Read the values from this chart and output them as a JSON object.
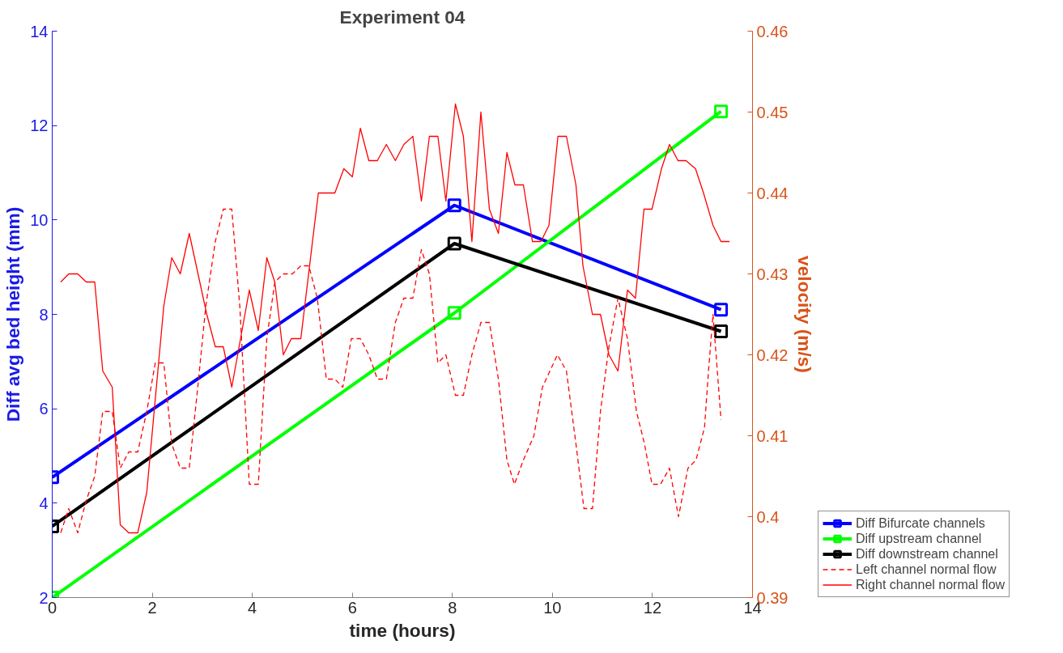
{
  "chart_data": {
    "type": "line",
    "title": "Experiment 04",
    "xlabel": "time (hours)",
    "ylabel": "Diff avg bed height (mm)",
    "y2label": "velocity (m/s)",
    "xlim": [
      0,
      14
    ],
    "xticks": [
      0,
      2,
      4,
      6,
      8,
      10,
      12,
      14
    ],
    "ylim": [
      2,
      14
    ],
    "yticks": [
      2,
      4,
      6,
      8,
      10,
      12,
      14
    ],
    "y2lim": [
      0.39,
      0.46
    ],
    "y2ticks": [
      0.39,
      0.4,
      0.41,
      0.42,
      0.43,
      0.44,
      0.45,
      0.46
    ],
    "grid": false,
    "legend": "bottom right",
    "series": [
      {
        "name": "Diff Bifurcate channels",
        "color": "#0000ff",
        "marker": "square",
        "line_style": "solid",
        "x": [
          0,
          8.04,
          13.37
        ],
        "values": [
          4.55,
          10.31,
          8.1
        ]
      },
      {
        "name": "Diff upstream channel",
        "color": "#00ff00",
        "marker": "square",
        "line_style": "solid",
        "x": [
          0,
          8.04,
          13.37
        ],
        "values": [
          2.0,
          8.03,
          12.3
        ]
      },
      {
        "name": "Diff downstream channel",
        "color": "#000000",
        "marker": "square",
        "line_style": "solid",
        "x": [
          0,
          8.04,
          13.37
        ],
        "values": [
          3.51,
          9.5,
          7.64
        ]
      },
      {
        "name": "Left channel normal flow",
        "color": "#ff0000",
        "marker": "none",
        "line_style": "dashed",
        "axis": "y2",
        "x": [
          0.17,
          0.33,
          0.51,
          0.68,
          0.85,
          1.01,
          1.2,
          1.36,
          1.53,
          1.71,
          1.89,
          2.06,
          2.23,
          2.39,
          2.56,
          2.74,
          2.91,
          3.07,
          3.26,
          3.42,
          3.59,
          3.75,
          3.94,
          4.12,
          4.29,
          4.45,
          4.62,
          4.8,
          4.97,
          5.13,
          5.3,
          5.48,
          5.65,
          5.81,
          5.98,
          6.16,
          6.33,
          6.5,
          6.68,
          6.86,
          7.03,
          7.21,
          7.38,
          7.54,
          7.71,
          7.87,
          8.06,
          8.22,
          8.39,
          8.57,
          8.74,
          8.92,
          9.09,
          9.24,
          9.42,
          9.63,
          9.8,
          10.1,
          10.28,
          10.47,
          10.63,
          10.8,
          10.96,
          11.13,
          11.31,
          11.5,
          11.68,
          11.84,
          11.99,
          12.16,
          12.34,
          12.52,
          12.71,
          12.87,
          13.04,
          13.12,
          13.21,
          13.37
        ],
        "values": [
          0.398,
          0.401,
          0.398,
          0.402,
          0.405,
          0.413,
          0.413,
          0.406,
          0.408,
          0.408,
          0.413,
          0.419,
          0.419,
          0.409,
          0.406,
          0.406,
          0.416,
          0.426,
          0.434,
          0.438,
          0.438,
          0.426,
          0.404,
          0.404,
          0.422,
          0.429,
          0.43,
          0.43,
          0.431,
          0.431,
          0.427,
          0.417,
          0.417,
          0.416,
          0.422,
          0.422,
          0.42,
          0.417,
          0.417,
          0.424,
          0.427,
          0.427,
          0.433,
          0.43,
          0.419,
          0.42,
          0.415,
          0.415,
          0.42,
          0.424,
          0.424,
          0.417,
          0.407,
          0.404,
          0.407,
          0.41,
          0.416,
          0.42,
          0.418,
          0.409,
          0.401,
          0.401,
          0.413,
          0.421,
          0.427,
          0.422,
          0.413,
          0.409,
          0.404,
          0.404,
          0.406,
          0.4,
          0.406,
          0.407,
          0.411,
          0.418,
          0.425,
          0.412
        ]
      },
      {
        "name": "Right channel normal flow",
        "color": "#ff0000",
        "marker": "none",
        "line_style": "solid",
        "axis": "y2",
        "x": [
          0.17,
          0.33,
          0.51,
          0.68,
          0.85,
          1.01,
          1.2,
          1.36,
          1.53,
          1.71,
          1.89,
          2.23,
          2.39,
          2.56,
          2.74,
          3.09,
          3.26,
          3.42,
          3.59,
          3.94,
          4.12,
          4.29,
          4.45,
          4.62,
          4.78,
          4.97,
          5.32,
          5.65,
          5.83,
          6.0,
          6.16,
          6.33,
          6.5,
          6.68,
          6.86,
          7.03,
          7.21,
          7.38,
          7.54,
          7.71,
          7.87,
          8.06,
          8.22,
          8.39,
          8.57,
          8.74,
          8.92,
          9.09,
          9.25,
          9.42,
          9.6,
          9.77,
          9.93,
          10.11,
          10.28,
          10.47,
          10.61,
          10.8,
          10.96,
          11.13,
          11.31,
          11.5,
          11.66,
          11.83,
          11.99,
          12.18,
          12.34,
          12.51,
          12.67,
          12.86,
          13.02,
          13.21,
          13.37,
          13.54
        ],
        "values": [
          0.429,
          0.43,
          0.43,
          0.429,
          0.429,
          0.418,
          0.416,
          0.399,
          0.398,
          0.398,
          0.403,
          0.426,
          0.432,
          0.43,
          0.435,
          0.425,
          0.421,
          0.421,
          0.416,
          0.428,
          0.423,
          0.432,
          0.429,
          0.42,
          0.422,
          0.422,
          0.44,
          0.44,
          0.443,
          0.442,
          0.448,
          0.444,
          0.444,
          0.446,
          0.444,
          0.446,
          0.447,
          0.439,
          0.447,
          0.447,
          0.439,
          0.451,
          0.447,
          0.434,
          0.45,
          0.438,
          0.435,
          0.445,
          0.441,
          0.441,
          0.434,
          0.434,
          0.436,
          0.447,
          0.447,
          0.441,
          0.431,
          0.425,
          0.425,
          0.42,
          0.418,
          0.428,
          0.427,
          0.438,
          0.438,
          0.443,
          0.446,
          0.444,
          0.444,
          0.443,
          0.44,
          0.436,
          0.434,
          0.434
        ]
      }
    ]
  }
}
